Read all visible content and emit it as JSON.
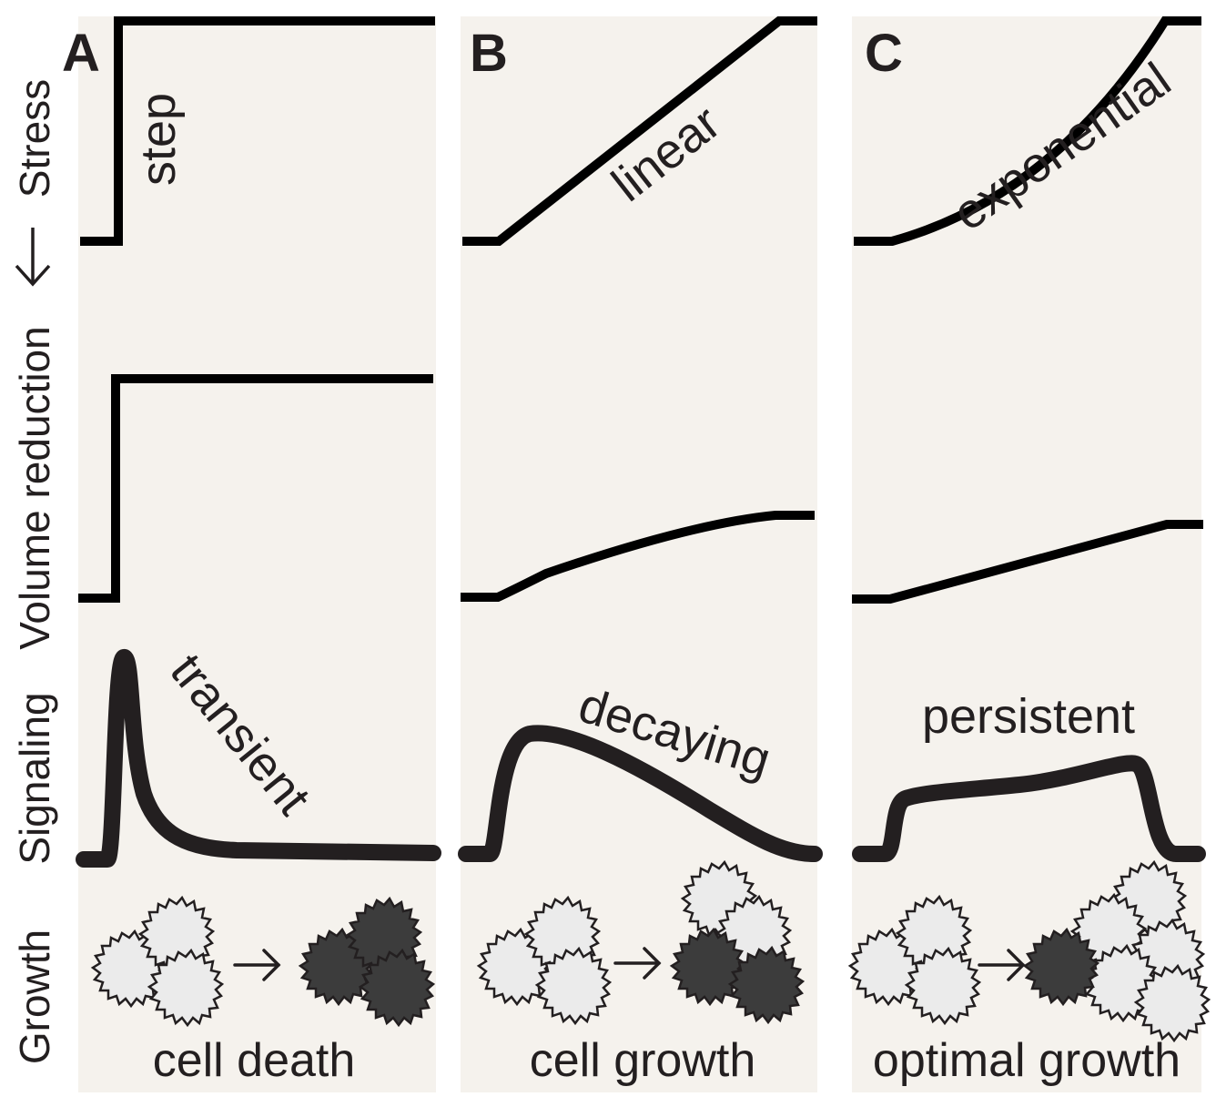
{
  "row_labels": {
    "stress": "Stress",
    "volume": "Volume reduction",
    "signaling": "Signaling",
    "growth": "Growth"
  },
  "panels": [
    {
      "letter": "A",
      "stress_label": "step",
      "signaling_label": "transient",
      "caption": "cell death"
    },
    {
      "letter": "B",
      "stress_label": "linear",
      "signaling_label": "decaying",
      "caption": "cell growth"
    },
    {
      "letter": "C",
      "stress_label": "exponential",
      "signaling_label": "persistent",
      "caption": "optimal growth"
    }
  ],
  "colors": {
    "panel_background": "#f5f2ed",
    "curve": "#000000",
    "text": "#231f20",
    "live_cell": "#ebebeb",
    "dead_cell": "#3c3c3c"
  },
  "icons": {
    "arrow_down": "down-arrow-icon",
    "arrow_right": "right-arrow-icon",
    "cell": "cell-icon"
  }
}
